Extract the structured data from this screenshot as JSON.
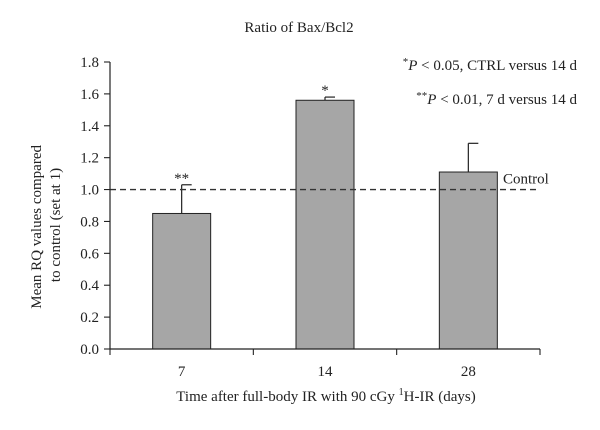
{
  "chart_data": {
    "type": "bar",
    "title": "Ratio of Bax/Bcl2",
    "categories": [
      "7",
      "14",
      "28"
    ],
    "values": [
      0.85,
      1.56,
      1.11
    ],
    "error_upper": [
      0.18,
      0.02,
      0.18
    ],
    "significance": [
      "**",
      "*",
      ""
    ],
    "ylim": [
      0,
      1.8
    ],
    "yticks": [
      "0.0",
      "0.2",
      "0.4",
      "0.6",
      "0.8",
      "1.0",
      "1.2",
      "1.4",
      "1.6",
      "1.8"
    ],
    "ylabel_line1": "Mean RQ values compared",
    "ylabel_line2": "to control (set at 1)",
    "xlabel_prefix": "Time after full-body IR with 90 cGy ",
    "xlabel_sup": "1",
    "xlabel_suffix": "H-IR (days)",
    "reference_line": {
      "value": 1.0,
      "label": "Control"
    },
    "legend": [
      {
        "marker": "*",
        "p": "P",
        "rest": " < 0.05, CTRL versus 14 d"
      },
      {
        "marker": "**",
        "p": "P",
        "rest": " < 0.01, 7 d versus 14 d"
      }
    ],
    "bar_color": "#a6a6a6",
    "grid": false
  }
}
